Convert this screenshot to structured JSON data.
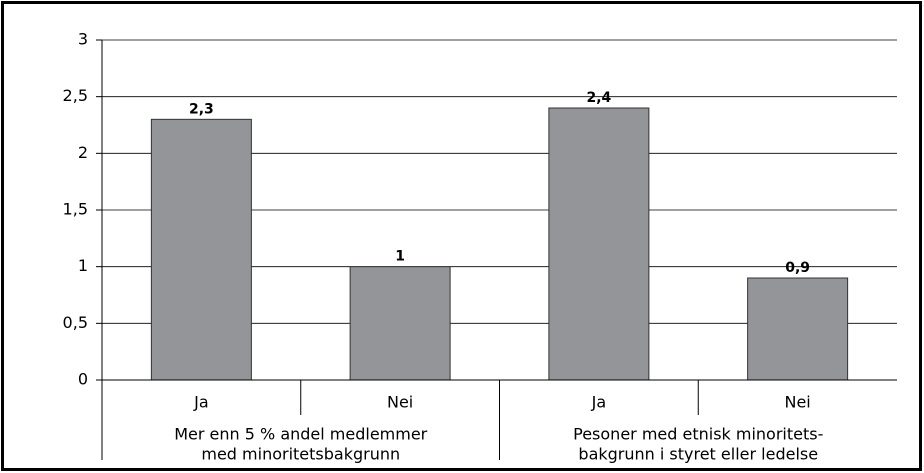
{
  "chart_data": {
    "type": "bar",
    "categories": [
      "Ja",
      "Nei",
      "Ja",
      "Nei"
    ],
    "group_labels": [
      [
        "Mer enn 5 % andel medlemmer",
        "med minoritetsbakgrunn"
      ],
      [
        "Pesoner  med etnisk minoritets-",
        "bakgrunn i styret eller ledelse"
      ]
    ],
    "values": [
      2.3,
      1,
      2.4,
      0.9
    ],
    "value_labels": [
      "2,3",
      "1",
      "2,4",
      "0,9"
    ],
    "color": "#939598",
    "ylim": [
      0,
      3
    ],
    "yticks": [
      0,
      {
        "value": 0.5,
        "label": "0,5"
      },
      1,
      {
        "value": 1.5,
        "label": "1,5"
      },
      2,
      {
        "value": 2.5,
        "label": "2,5"
      },
      3
    ],
    "grid": true
  }
}
